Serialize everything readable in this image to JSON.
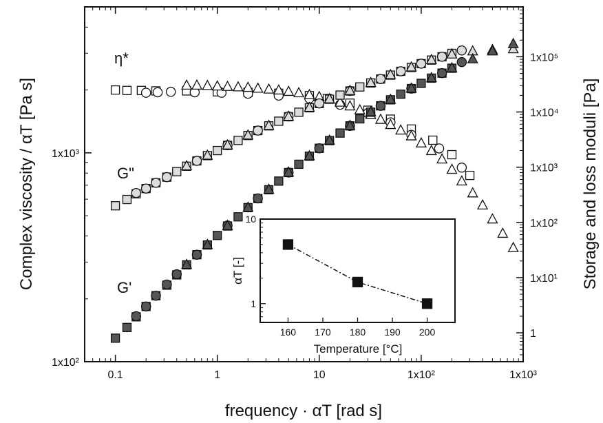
{
  "chart_data": [
    {
      "type": "scatter",
      "xlabel": "frequency · αT [rad s]",
      "ylabel": "Complex viscosity / αT [Pa s]",
      "y2label": "Storage and loss moduli [Pa]",
      "xscale": "log",
      "yscale": "log",
      "y2scale": "log",
      "xlim": [
        0.05,
        1000
      ],
      "ylim": [
        100,
        5000
      ],
      "y2lim": [
        0.3,
        800000
      ],
      "xticks": [
        "0.1",
        "1",
        "10",
        "1x10²",
        "1x10³"
      ],
      "yticks": [
        "1x10²",
        "1x10³"
      ],
      "y2ticks": [
        "1",
        "1x10¹",
        "1x10²",
        "1x10³",
        "1x10⁴",
        "1x10⁵"
      ],
      "annotations": [
        "η*",
        "G\"",
        "G'"
      ],
      "grid": false,
      "legend": "none",
      "series": [
        {
          "curve": "η*",
          "marker": "square-open",
          "fill": "#ffffff",
          "axis": "left",
          "x": [
            0.1,
            0.13,
            0.18,
            0.25,
            0.5,
            1,
            2,
            4,
            8,
            12,
            20,
            30,
            50,
            80,
            130,
            200,
            300
          ],
          "y": [
            2000,
            1990,
            1990,
            1980,
            1980,
            1960,
            1950,
            1930,
            1880,
            1820,
            1730,
            1600,
            1450,
            1300,
            1150,
            980,
            780
          ]
        },
        {
          "curve": "η*",
          "marker": "circle-open",
          "fill": "#ffffff",
          "axis": "left",
          "x": [
            0.2,
            0.26,
            0.35,
            0.6,
            1.1,
            2,
            4,
            8,
            16,
            30,
            50,
            80,
            150,
            250
          ],
          "y": [
            1940,
            1950,
            1960,
            1950,
            1940,
            1920,
            1880,
            1820,
            1700,
            1550,
            1400,
            1220,
            1050,
            850
          ]
        },
        {
          "curve": "η*",
          "marker": "triangle-open",
          "fill": "#ffffff",
          "axis": "left",
          "x": [
            0.5,
            0.63,
            0.8,
            1,
            1.26,
            1.6,
            2,
            2.5,
            3.2,
            4,
            5,
            6.3,
            8,
            10,
            12.6,
            16,
            20,
            25,
            32,
            40,
            50,
            63,
            80,
            100,
            126,
            160,
            200,
            250,
            320,
            400,
            500,
            630,
            800
          ],
          "y": [
            2100,
            2100,
            2090,
            2080,
            2070,
            2060,
            2050,
            2030,
            2010,
            1990,
            1960,
            1930,
            1890,
            1850,
            1800,
            1740,
            1670,
            1600,
            1520,
            1440,
            1360,
            1280,
            1200,
            1110,
            1020,
            930,
            830,
            730,
            640,
            560,
            480,
            410,
            350
          ]
        },
        {
          "curve": "G\"",
          "marker": "square",
          "fill": "#dcdcdc",
          "axis": "right",
          "x": [
            0.1,
            0.13,
            0.16,
            0.2,
            0.25,
            0.32,
            0.4,
            0.5,
            0.63,
            0.8,
            1,
            1.26,
            1.6,
            2,
            2.5,
            3.2,
            4,
            5,
            6.3,
            8,
            10,
            12.6,
            16,
            20,
            25,
            32,
            40,
            50,
            63,
            80,
            100,
            126,
            160,
            200
          ],
          "y": [
            200,
            260,
            330,
            410,
            520,
            660,
            830,
            1040,
            1300,
            1620,
            2000,
            2480,
            3050,
            3750,
            4600,
            5600,
            6800,
            8200,
            9900,
            11900,
            14200,
            17000,
            20200,
            24000,
            28400,
            33500,
            39500,
            46500,
            54500,
            64000,
            75000,
            87000,
            100000,
            115000
          ]
        },
        {
          "curve": "G\"",
          "marker": "circle",
          "fill": "#dcdcdc",
          "axis": "right",
          "x": [
            0.16,
            0.2,
            0.25,
            0.32,
            0.63,
            1.26,
            2.5,
            5,
            10,
            20,
            40,
            63,
            100,
            160,
            250
          ],
          "y": [
            340,
            410,
            520,
            660,
            1300,
            2500,
            4600,
            8300,
            14300,
            24000,
            39500,
            54500,
            75000,
            100000,
            130000
          ]
        },
        {
          "curve": "G\"",
          "marker": "triangle",
          "fill": "#dcdcdc",
          "axis": "right",
          "x": [
            0.5,
            0.8,
            1.26,
            2,
            3.2,
            5,
            8,
            12.6,
            20,
            32,
            50,
            80,
            126,
            200,
            320,
            500,
            800
          ],
          "y": [
            1040,
            1620,
            2480,
            3750,
            5600,
            8200,
            11900,
            17000,
            24000,
            33500,
            46500,
            64000,
            87000,
            110000,
            125000,
            132000,
            137000
          ]
        },
        {
          "curve": "G'",
          "marker": "square",
          "fill": "#555555",
          "axis": "right",
          "x": [
            0.1,
            0.13,
            0.16,
            0.2,
            0.25,
            0.32,
            0.4,
            0.5,
            0.63,
            0.8,
            1,
            1.26,
            1.6,
            2,
            2.5,
            3.2,
            4,
            5,
            6.3,
            8,
            10,
            12.6,
            16,
            20,
            25,
            32,
            40,
            50,
            63,
            80,
            100,
            126,
            160,
            200
          ],
          "y": [
            0.8,
            1.25,
            1.95,
            3,
            4.7,
            7.3,
            11.2,
            17,
            26,
            39,
            58,
            86,
            126,
            185,
            270,
            390,
            560,
            800,
            1130,
            1580,
            2200,
            3030,
            4150,
            5600,
            7500,
            9900,
            12900,
            16600,
            21000,
            26500,
            33000,
            41000,
            50500,
            62000
          ]
        },
        {
          "curve": "G'",
          "marker": "circle",
          "fill": "#555555",
          "axis": "right",
          "x": [
            0.16,
            0.2,
            0.25,
            0.32,
            0.4,
            0.63,
            1.26,
            2.5,
            5,
            10,
            20,
            40,
            80,
            160,
            250
          ],
          "y": [
            2,
            3,
            4.7,
            7.5,
            11.5,
            26,
            88,
            272,
            800,
            2200,
            5600,
            12900,
            26500,
            50500,
            80000
          ]
        },
        {
          "curve": "G'",
          "marker": "triangle",
          "fill": "#555555",
          "axis": "right",
          "x": [
            0.5,
            0.8,
            1.26,
            2,
            3.2,
            5,
            8,
            12.6,
            20,
            32,
            50,
            80,
            126,
            200,
            320,
            500,
            800
          ],
          "y": [
            17,
            39,
            86,
            185,
            390,
            800,
            1580,
            3030,
            5600,
            9900,
            16600,
            26500,
            41000,
            62000,
            90000,
            125000,
            170000
          ]
        }
      ]
    },
    {
      "type": "line",
      "xlabel": "Temperature [°C]",
      "ylabel": "αT [-]",
      "yscale": "log",
      "xlim": [
        152,
        208
      ],
      "ylim": [
        0.6,
        10
      ],
      "xticks": [
        "160",
        "170",
        "180",
        "190",
        "200"
      ],
      "yticks": [
        "1",
        "10"
      ],
      "series": [
        {
          "marker": "square",
          "fill": "#111111",
          "line": "dash-dot",
          "x": [
            160,
            180,
            200
          ],
          "y": [
            5,
            1.8,
            1
          ]
        }
      ]
    }
  ]
}
